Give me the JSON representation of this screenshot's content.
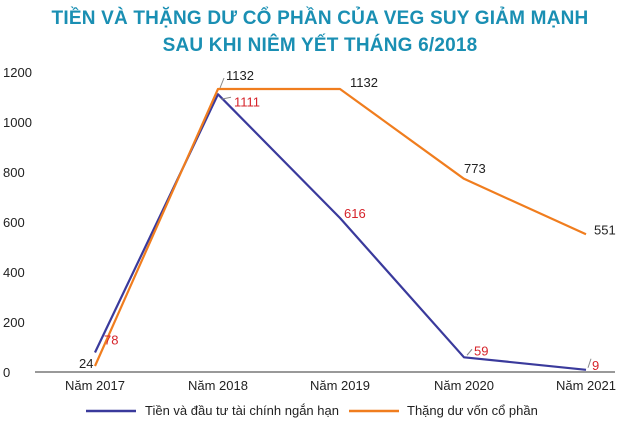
{
  "title_line1": "TIỀN VÀ THẶNG DƯ CỔ PHẦN CỦA VEG SUY GIẢM MẠNH",
  "title_line2": "SAU KHI NIÊM YẾT THÁNG 6/2018",
  "chart_data": {
    "type": "line",
    "categories": [
      "Năm 2017",
      "Năm 2018",
      "Năm 2019",
      "Năm 2020",
      "Năm 2021"
    ],
    "ylim": [
      0,
      1200
    ],
    "yticks": [
      0,
      200,
      400,
      600,
      800,
      1000,
      1200
    ],
    "grid": false,
    "legend_position": "bottom",
    "series": [
      {
        "name": "Tiền và đầu tư tài chính ngắn hạn",
        "values": [
          78,
          1111,
          616,
          59,
          9
        ],
        "labels": [
          "78",
          "1111",
          "616",
          "59",
          "9"
        ],
        "color": "#3a3a9c",
        "label_color": "#d6232a"
      },
      {
        "name": "Thặng dư vốn cổ phần",
        "values": [
          24,
          1132,
          1132,
          773,
          551
        ],
        "labels": [
          "24",
          "1132",
          "1132",
          "773",
          "551"
        ],
        "color": "#f07d1e",
        "label_color": "#222222"
      }
    ]
  }
}
